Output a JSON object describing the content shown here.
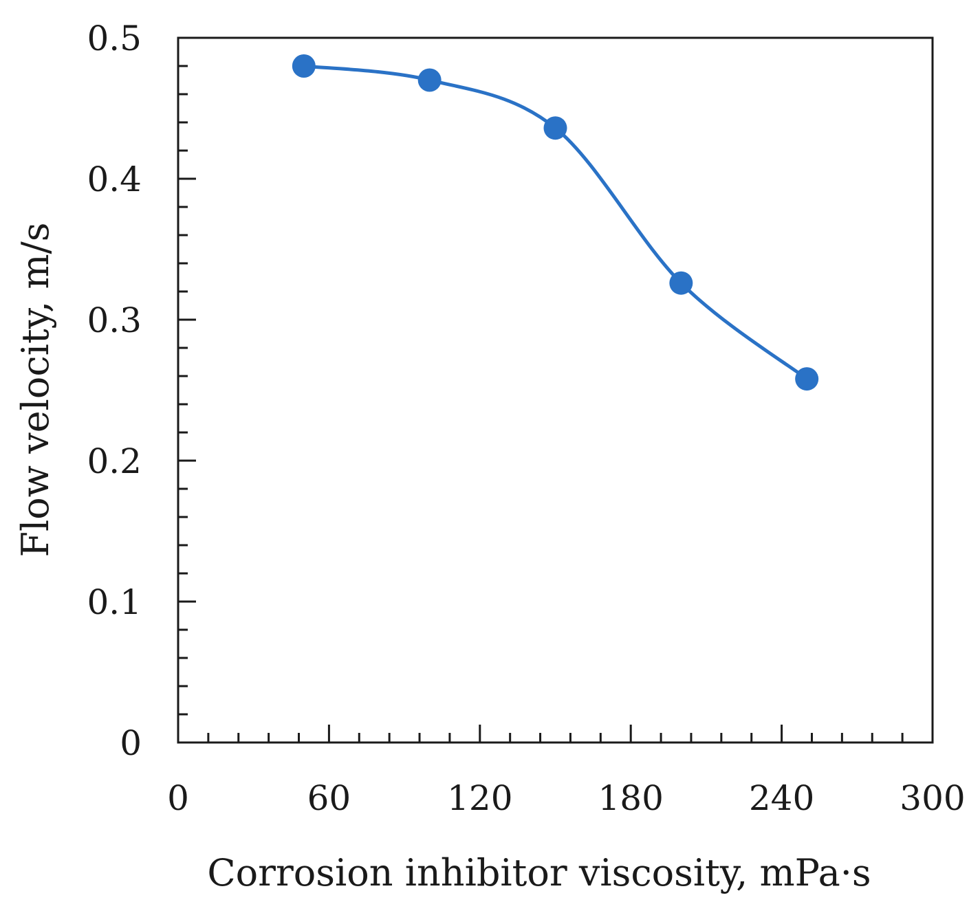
{
  "chart_data": {
    "type": "line",
    "title": "",
    "xlabel": "Corrosion inhibitor viscosity, mPa·s",
    "ylabel": "Flow velocity, m/s",
    "xlim": [
      0,
      300
    ],
    "ylim": [
      0,
      0.5
    ],
    "x_ticks": [
      0,
      60,
      120,
      180,
      240,
      300
    ],
    "x_tick_labels": [
      "0",
      "60",
      "120",
      "180",
      "240",
      "300"
    ],
    "x_minor_step": 12,
    "y_ticks": [
      0,
      0.1,
      0.2,
      0.3,
      0.4,
      0.5
    ],
    "y_tick_labels": [
      "0",
      "0.1",
      "0.2",
      "0.3",
      "0.4",
      "0.5"
    ],
    "y_minor_step": 0.02,
    "grid": false,
    "series": [
      {
        "name": "Flow velocity",
        "color": "#2a72c6",
        "smooth": true,
        "marker": "circle",
        "x": [
          50,
          100,
          150,
          200,
          250
        ],
        "y": [
          0.48,
          0.47,
          0.436,
          0.326,
          0.258
        ]
      }
    ]
  }
}
